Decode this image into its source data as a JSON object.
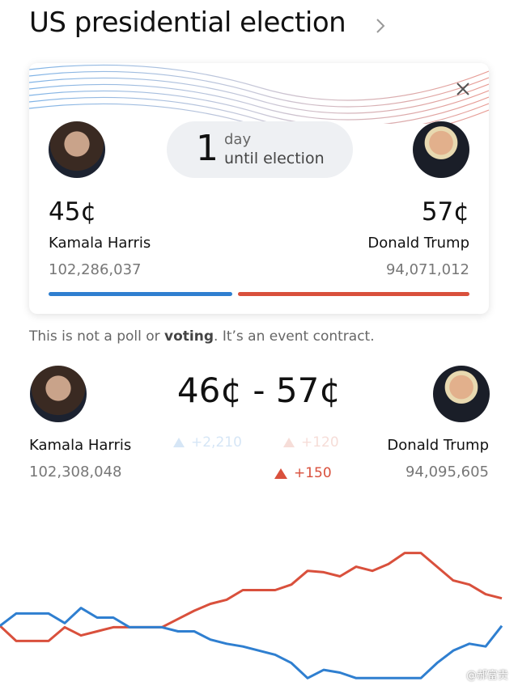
{
  "header": {
    "title": "US presidential election"
  },
  "card": {
    "countdown_number": "1",
    "countdown_unit": "day",
    "countdown_text": "until election",
    "left": {
      "price": "45¢",
      "name": "Kamala Harris",
      "volume": "102,286,037"
    },
    "right": {
      "price": "57¢",
      "name": "Donald Trump",
      "volume": "94,071,012"
    }
  },
  "notice": {
    "part1": "This is not a poll or ",
    "bold": "voting",
    "part2": ". It’s an event contract."
  },
  "market": {
    "prices": "46¢ - 57¢",
    "left": {
      "name": "Kamala Harris",
      "volume": "102,308,048",
      "change": "+2,210"
    },
    "right": {
      "name": "Donald Trump",
      "volume": "94,095,605",
      "change_faded": "+120",
      "change": "+150"
    }
  },
  "watermark": "@郝富贵",
  "chart_data": {
    "type": "line",
    "ylim": [
      0,
      100
    ],
    "series": [
      {
        "color": "#d9503c",
        "values": [
          39,
          28,
          28,
          28,
          38,
          32,
          35,
          38,
          38,
          38,
          38,
          44,
          50,
          55,
          58,
          65,
          65,
          65,
          69,
          79,
          78,
          75,
          82,
          79,
          84,
          92,
          92,
          82,
          72,
          69,
          62,
          59
        ]
      },
      {
        "color": "#2f7fd0",
        "values": [
          39,
          48,
          48,
          48,
          41,
          52,
          45,
          45,
          38,
          38,
          38,
          35,
          35,
          29,
          26,
          24,
          21,
          18,
          12,
          1,
          7,
          5,
          1,
          1,
          1,
          1,
          1,
          12,
          21,
          26,
          24,
          39
        ]
      }
    ]
  }
}
